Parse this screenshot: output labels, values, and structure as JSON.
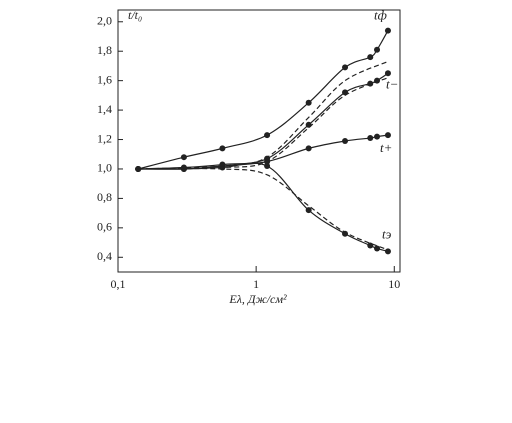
{
  "chart_data": {
    "type": "line",
    "xscale": "log",
    "xlabel": "Eλ, Дж/см²",
    "ylabel": "t/t₀",
    "xlim": [
      0.1,
      11
    ],
    "xticks": [
      {
        "value": 0.1,
        "label": "0,1"
      },
      1,
      10
    ],
    "ylim": [
      0.3,
      2.08
    ],
    "yticks": [
      {
        "value": 0.4,
        "label": "0,4"
      },
      {
        "value": 0.6,
        "label": "0,6"
      },
      {
        "value": 0.8,
        "label": "0,8"
      },
      {
        "value": 1.0,
        "label": "1,0"
      },
      {
        "value": 1.2,
        "label": "1,2"
      },
      {
        "value": 1.4,
        "label": "1,4"
      },
      {
        "value": 1.6,
        "label": "1,6"
      },
      {
        "value": 1.8,
        "label": "1,8"
      },
      {
        "value": 2.0,
        "label": "2,0"
      }
    ],
    "series": [
      {
        "name": "tф",
        "color": "#222",
        "dash": false,
        "markers": true,
        "x": [
          0.14,
          0.3,
          0.57,
          1.2,
          2.4,
          4.4,
          6.7,
          7.5,
          9
        ],
        "values": [
          1.0,
          1.08,
          1.14,
          1.23,
          1.45,
          1.69,
          1.76,
          1.81,
          1.94
        ]
      },
      {
        "name": "t−",
        "color": "#222",
        "dash": false,
        "markers": true,
        "x": [
          0.14,
          0.3,
          0.57,
          1.2,
          2.4,
          4.4,
          6.7,
          7.5,
          9
        ],
        "values": [
          1.0,
          1.01,
          1.03,
          1.07,
          1.3,
          1.52,
          1.58,
          1.6,
          1.65
        ]
      },
      {
        "name": "t+",
        "color": "#222",
        "dash": false,
        "markers": true,
        "x": [
          0.14,
          0.3,
          0.57,
          1.2,
          2.4,
          4.4,
          6.7,
          7.5,
          9
        ],
        "values": [
          1.0,
          1.0,
          1.02,
          1.05,
          1.14,
          1.19,
          1.21,
          1.22,
          1.23
        ]
      },
      {
        "name": "tэ",
        "color": "#222",
        "dash": false,
        "markers": true,
        "x": [
          0.14,
          0.3,
          0.57,
          1.2,
          2.4,
          4.4,
          6.7,
          7.5,
          9
        ],
        "values": [
          1.0,
          1.0,
          1.01,
          1.02,
          0.72,
          0.56,
          0.48,
          0.46,
          0.44
        ]
      },
      {
        "color": "#222",
        "dash": true,
        "markers": false,
        "x": [
          0.14,
          0.57,
          1.2,
          2.4,
          4.4,
          9
        ],
        "values": [
          1.0,
          1.02,
          1.08,
          1.35,
          1.6,
          1.73
        ]
      },
      {
        "color": "#222",
        "dash": true,
        "markers": false,
        "x": [
          0.14,
          0.57,
          1.2,
          2.4,
          4.4,
          9
        ],
        "values": [
          1.0,
          1.01,
          1.05,
          1.28,
          1.5,
          1.62
        ]
      },
      {
        "color": "#222",
        "dash": true,
        "markers": false,
        "x": [
          0.14,
          0.57,
          1.2,
          2.4,
          4.4,
          9
        ],
        "values": [
          1.0,
          1.0,
          0.96,
          0.75,
          0.57,
          0.45
        ]
      }
    ]
  }
}
